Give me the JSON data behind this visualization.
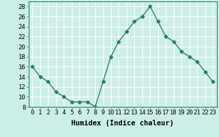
{
  "x": [
    0,
    1,
    2,
    3,
    4,
    5,
    6,
    7,
    8,
    9,
    10,
    11,
    12,
    13,
    14,
    15,
    16,
    17,
    18,
    19,
    20,
    21,
    22,
    23
  ],
  "y": [
    16,
    14,
    13,
    11,
    10,
    9,
    9,
    9,
    8,
    13,
    18,
    21,
    23,
    25,
    26,
    28,
    25,
    22,
    21,
    19,
    18,
    17,
    15,
    13
  ],
  "line_color": "#2e7d6e",
  "marker": "D",
  "marker_size": 2.5,
  "bg_color": "#cceee8",
  "grid_color": "#ffffff",
  "xlabel": "Humidex (Indice chaleur)",
  "xlabel_fontsize": 7.5,
  "ylim": [
    8,
    29
  ],
  "yticks": [
    8,
    10,
    12,
    14,
    16,
    18,
    20,
    22,
    24,
    26,
    28
  ],
  "xticks": [
    0,
    1,
    2,
    3,
    4,
    5,
    6,
    7,
    8,
    9,
    10,
    11,
    12,
    13,
    14,
    15,
    16,
    17,
    18,
    19,
    20,
    21,
    22,
    23
  ],
  "tick_fontsize": 6.5
}
